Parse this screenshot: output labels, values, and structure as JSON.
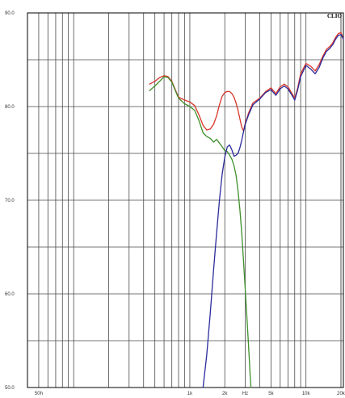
{
  "brand": "CLIO",
  "chart_data": {
    "type": "line",
    "title": "",
    "xlabel": "Hz",
    "ylabel": "",
    "x_scale": "log",
    "xlim": [
      40,
      21000
    ],
    "ylim": [
      50,
      90
    ],
    "grid": true,
    "legend": "none",
    "y_ticks": [
      {
        "value": 90,
        "label": "90.0"
      },
      {
        "value": 80,
        "label": "80.0"
      },
      {
        "value": 70,
        "label": "70.0"
      },
      {
        "value": 60,
        "label": "60.0"
      },
      {
        "value": 50,
        "label": "50.0"
      }
    ],
    "x_ticks": [
      {
        "value": 50,
        "label": "50h"
      },
      {
        "value": 1000,
        "label": "1k"
      },
      {
        "value": 2000,
        "label": "2k"
      },
      {
        "value": 3000,
        "label": "Hz"
      },
      {
        "value": 5000,
        "label": "5k"
      },
      {
        "value": 10000,
        "label": "10k"
      },
      {
        "value": 20000,
        "label": "20k"
      }
    ],
    "series": [
      {
        "color": "#d8362a",
        "points": [
          [
            450,
            82.4
          ],
          [
            500,
            82.7
          ],
          [
            550,
            83.1
          ],
          [
            600,
            83.3
          ],
          [
            650,
            83.2
          ],
          [
            700,
            82.7
          ],
          [
            750,
            81.8
          ],
          [
            800,
            81.0
          ],
          [
            900,
            80.7
          ],
          [
            1000,
            80.5
          ],
          [
            1100,
            80.1
          ],
          [
            1200,
            79.1
          ],
          [
            1300,
            78.0
          ],
          [
            1400,
            77.5
          ],
          [
            1500,
            77.6
          ],
          [
            1600,
            78.1
          ],
          [
            1700,
            79.0
          ],
          [
            1800,
            80.2
          ],
          [
            1900,
            81.1
          ],
          [
            2000,
            81.5
          ],
          [
            2100,
            81.6
          ],
          [
            2200,
            81.6
          ],
          [
            2300,
            81.4
          ],
          [
            2400,
            81.0
          ],
          [
            2500,
            80.4
          ],
          [
            2600,
            79.6
          ],
          [
            2700,
            78.7
          ],
          [
            2800,
            77.8
          ],
          [
            2900,
            77.4
          ],
          [
            3000,
            78.2
          ],
          [
            3200,
            79.3
          ],
          [
            3500,
            80.4
          ],
          [
            4000,
            80.9
          ],
          [
            4500,
            81.6
          ],
          [
            5000,
            82.0
          ],
          [
            5500,
            81.4
          ],
          [
            6000,
            82.1
          ],
          [
            6500,
            82.4
          ],
          [
            7000,
            82.1
          ],
          [
            7500,
            81.5
          ],
          [
            8000,
            80.9
          ],
          [
            8500,
            82.0
          ],
          [
            9000,
            83.5
          ],
          [
            10000,
            84.6
          ],
          [
            11000,
            84.3
          ],
          [
            12000,
            83.8
          ],
          [
            13000,
            84.5
          ],
          [
            14000,
            85.4
          ],
          [
            15000,
            86.1
          ],
          [
            16000,
            86.4
          ],
          [
            17000,
            86.8
          ],
          [
            18000,
            87.4
          ],
          [
            19000,
            87.8
          ],
          [
            20000,
            87.9
          ],
          [
            21000,
            87.2
          ]
        ]
      },
      {
        "color": "#3f8f2a",
        "points": [
          [
            450,
            81.7
          ],
          [
            500,
            82.2
          ],
          [
            550,
            82.7
          ],
          [
            600,
            83.2
          ],
          [
            650,
            83.1
          ],
          [
            700,
            82.6
          ],
          [
            750,
            81.7
          ],
          [
            800,
            80.9
          ],
          [
            900,
            80.3
          ],
          [
            1000,
            80.0
          ],
          [
            1100,
            79.6
          ],
          [
            1200,
            78.5
          ],
          [
            1300,
            77.2
          ],
          [
            1400,
            76.8
          ],
          [
            1500,
            76.6
          ],
          [
            1600,
            76.2
          ],
          [
            1700,
            76.5
          ],
          [
            1800,
            76.1
          ],
          [
            1900,
            75.7
          ],
          [
            2000,
            75.3
          ],
          [
            2100,
            75.2
          ],
          [
            2200,
            74.8
          ],
          [
            2300,
            74.4
          ],
          [
            2400,
            73.7
          ],
          [
            2500,
            72.7
          ],
          [
            2600,
            71.0
          ],
          [
            2700,
            69.0
          ],
          [
            2800,
            66.5
          ],
          [
            2900,
            63.5
          ],
          [
            3000,
            60.5
          ],
          [
            3100,
            57.5
          ],
          [
            3200,
            54.5
          ],
          [
            3300,
            51.5
          ],
          [
            3360,
            50.0
          ]
        ]
      },
      {
        "color": "#2b2a9c",
        "points": [
          [
            1300,
            50.0
          ],
          [
            1400,
            53.5
          ],
          [
            1500,
            58.0
          ],
          [
            1600,
            62.5
          ],
          [
            1700,
            66.5
          ],
          [
            1800,
            70.0
          ],
          [
            1900,
            72.8
          ],
          [
            2000,
            74.6
          ],
          [
            2100,
            75.7
          ],
          [
            2200,
            75.9
          ],
          [
            2300,
            75.4
          ],
          [
            2400,
            74.7
          ],
          [
            2500,
            74.8
          ],
          [
            2600,
            75.0
          ],
          [
            2700,
            75.6
          ],
          [
            2800,
            76.4
          ],
          [
            2900,
            77.3
          ],
          [
            3000,
            78.1
          ],
          [
            3200,
            79.1
          ],
          [
            3500,
            80.2
          ],
          [
            4000,
            80.8
          ],
          [
            4500,
            81.5
          ],
          [
            5000,
            81.8
          ],
          [
            5500,
            81.2
          ],
          [
            6000,
            81.9
          ],
          [
            6500,
            82.2
          ],
          [
            7000,
            81.9
          ],
          [
            7500,
            81.3
          ],
          [
            8000,
            80.7
          ],
          [
            8500,
            81.8
          ],
          [
            9000,
            83.2
          ],
          [
            10000,
            84.4
          ],
          [
            11000,
            84.0
          ],
          [
            12000,
            83.5
          ],
          [
            13000,
            84.2
          ],
          [
            14000,
            85.2
          ],
          [
            15000,
            85.9
          ],
          [
            16000,
            86.2
          ],
          [
            17000,
            86.6
          ],
          [
            18000,
            87.2
          ],
          [
            19000,
            87.6
          ],
          [
            20000,
            87.7
          ],
          [
            21000,
            87.2
          ]
        ]
      }
    ]
  }
}
